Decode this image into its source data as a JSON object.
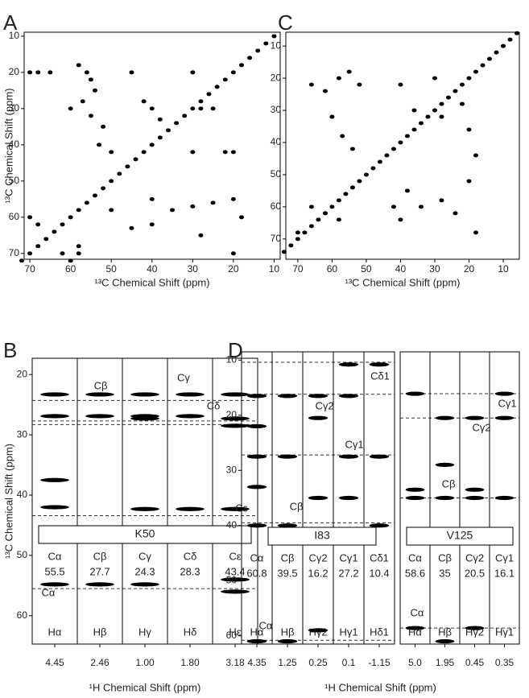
{
  "chart_data": [
    {
      "type": "scatter",
      "panel": "A",
      "xlabel": "¹³C Chemical Shift (ppm)",
      "ylabel": "¹³C Chemical Shift (ppm)",
      "xlim": [
        71.4,
        8.5
      ],
      "ylim": [
        8.9,
        71.6
      ],
      "xticks": [
        70,
        60,
        50,
        40,
        30,
        20,
        10
      ],
      "yticks": [
        10,
        20,
        30,
        40,
        50,
        60,
        70
      ],
      "color": "#000000",
      "x": [
        10,
        12,
        14,
        16,
        18,
        20,
        22,
        24,
        26,
        28,
        30,
        32,
        34,
        36,
        38,
        40,
        42,
        44,
        46,
        48,
        50,
        52,
        54,
        56,
        58,
        60,
        62,
        64,
        66,
        68,
        70,
        72,
        70,
        68,
        65,
        58,
        56,
        55,
        54,
        57,
        60,
        55,
        52,
        53,
        50,
        45,
        42,
        40,
        38,
        30,
        28,
        25,
        22,
        20,
        30,
        70,
        68,
        60,
        58,
        40,
        35,
        30,
        25,
        20,
        18,
        20,
        40,
        45,
        50,
        28,
        58,
        62
      ],
      "y": [
        10,
        12,
        14,
        16,
        18,
        20,
        22,
        24,
        26,
        28,
        30,
        32,
        34,
        36,
        38,
        40,
        42,
        44,
        46,
        48,
        50,
        52,
        54,
        56,
        58,
        60,
        62,
        64,
        66,
        68,
        70,
        72,
        20,
        20,
        20,
        18,
        20,
        22,
        25,
        28,
        30,
        32,
        35,
        40,
        42,
        20,
        28,
        30,
        33,
        20,
        30,
        30,
        42,
        42,
        42,
        60,
        62,
        72,
        70,
        55,
        58,
        57,
        56,
        55,
        60,
        70,
        62,
        63,
        58,
        65,
        68,
        70
      ]
    },
    {
      "type": "scatter",
      "panel": "C",
      "xlabel": "¹³C Chemical Shift (ppm)",
      "xlim": [
        73.5,
        5.3
      ],
      "ylim": [
        5.7,
        76.3
      ],
      "xticks": [
        70,
        60,
        50,
        40,
        30,
        20,
        10
      ],
      "yticks": [
        10,
        20,
        30,
        40,
        50,
        60,
        70
      ],
      "color": "#000000",
      "x": [
        6,
        8,
        10,
        12,
        14,
        16,
        18,
        20,
        22,
        24,
        26,
        28,
        30,
        32,
        34,
        36,
        38,
        40,
        42,
        44,
        46,
        48,
        50,
        52,
        54,
        56,
        58,
        60,
        62,
        64,
        66,
        68,
        70,
        72,
        74,
        66,
        62,
        58,
        55,
        52,
        60,
        57,
        54,
        40,
        36,
        30,
        28,
        22,
        20,
        18,
        38,
        34,
        28,
        24,
        20,
        18,
        66,
        62,
        58,
        70,
        42,
        40
      ],
      "y": [
        6,
        8,
        10,
        12,
        14,
        16,
        18,
        20,
        22,
        24,
        26,
        28,
        30,
        32,
        34,
        36,
        38,
        40,
        42,
        44,
        46,
        48,
        50,
        52,
        54,
        56,
        58,
        60,
        62,
        64,
        66,
        68,
        70,
        72,
        74,
        22,
        24,
        20,
        18,
        22,
        32,
        38,
        42,
        22,
        30,
        20,
        32,
        28,
        36,
        44,
        55,
        60,
        58,
        62,
        52,
        68,
        60,
        62,
        64,
        68,
        60,
        64
      ]
    },
    {
      "type": "strip",
      "panel": "B",
      "xlabel": "¹H Chemical Shift (ppm)",
      "ylabel": "¹³C Chemical Shift (ppm)",
      "ylim": [
        17.3,
        64.7
      ],
      "yticks": [
        20,
        30,
        40,
        50,
        60
      ],
      "color": "#000000",
      "annotations": [
        "Cβ",
        "Cγ",
        "Cδ",
        "Cε",
        "Cα"
      ],
      "groups": [
        {
          "residue": "K50",
          "strip_labels": [
            "Hα",
            "Hβ",
            "Hγ",
            "Hδ",
            "Hε"
          ],
          "categories": [
            "4.45",
            "2.46",
            "1.00",
            "1.80",
            "3.18"
          ],
          "carbon_labels": [
            "Cα",
            "Cβ",
            "Cγ",
            "Cδ",
            "Cε"
          ],
          "carbon_shifts": [
            55.5,
            27.7,
            24.3,
            28.3,
            43.4
          ],
          "peaks": [
            [
              23.3,
              26.9,
              54.8,
              42,
              37.5
            ],
            [
              23.3,
              26.9,
              54.8
            ],
            [
              23.3,
              26.9,
              27.3,
              42.3,
              54.8
            ],
            [
              23.3,
              26.9,
              42.3
            ],
            [
              23.3,
              27.3,
              28.5,
              42.3,
              54,
              56
            ]
          ]
        }
      ]
    },
    {
      "type": "strip",
      "panel": "D",
      "xlabel": "¹H Chemical Shift (ppm)",
      "ylim": [
        8.5,
        61.5
      ],
      "yticks": [
        10,
        20,
        30,
        40,
        50,
        60
      ],
      "color": "#000000",
      "annotations": [
        "Cγ2",
        "Cδ1",
        "Cγ1",
        "Cβ",
        "Cα",
        "Cγ1",
        "Cγ2",
        "Cβ",
        "Cα"
      ],
      "groups": [
        {
          "residue": "I83",
          "strip_labels": [
            "Hα",
            "Hβ",
            "Hγ2",
            "Hγ1",
            "Hδ1"
          ],
          "categories": [
            "4.35",
            "1.25",
            "0.25",
            "0.1",
            "-1.15"
          ],
          "carbon_labels": [
            "Cα",
            "Cβ",
            "Cγ2",
            "Cγ1",
            "Cδ1"
          ],
          "carbon_shifts": [
            60.8,
            39.5,
            16.2,
            27.2,
            10.4
          ],
          "peaks": [
            [
              16.5,
              22,
              27.5,
              33,
              40,
              61
            ],
            [
              16.5,
              27.5,
              40,
              61
            ],
            [
              16.5,
              20.5,
              35,
              59
            ],
            [
              10.8,
              16.5,
              27.5,
              35
            ],
            [
              10.8,
              27.5,
              40
            ]
          ]
        },
        {
          "residue": "V125",
          "strip_labels": [
            "Hα",
            "Hβ",
            "Hγ2",
            "Hγ1"
          ],
          "categories": [
            "5.0",
            "1.95",
            "0.45",
            "0.35"
          ],
          "carbon_labels": [
            "Cα",
            "Cβ",
            "Cγ2",
            "Cγ1"
          ],
          "carbon_shifts": [
            58.6,
            35.0,
            20.5,
            16.1
          ],
          "peaks": [
            [
              16.1,
              33.5,
              35,
              58.6
            ],
            [
              20.5,
              29,
              35,
              61
            ],
            [
              20.5,
              33.5,
              35,
              58.6
            ],
            [
              16.1,
              20.5,
              35
            ]
          ]
        }
      ]
    }
  ]
}
